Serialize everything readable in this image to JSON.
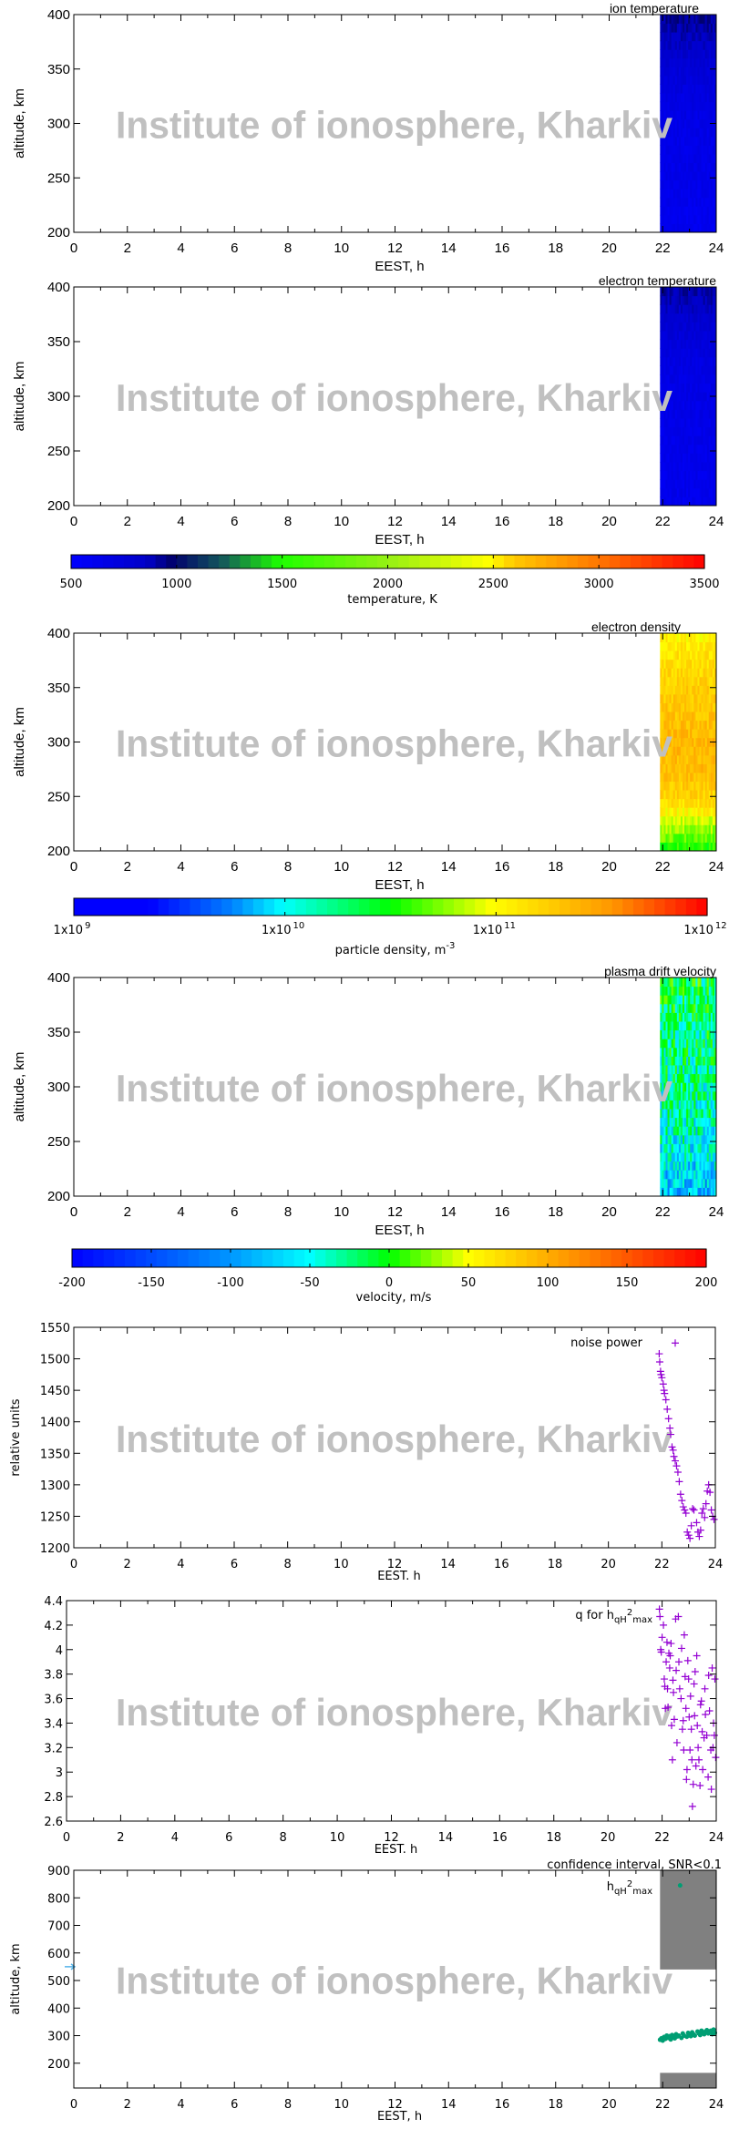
{
  "watermark": "Institute of ionosphere, Kharkiv",
  "chart_data": [
    {
      "type": "heatmap",
      "title": "ion temperature",
      "xlabel": "EEST, h",
      "ylabel": "altitude, km",
      "xlim": [
        0,
        24
      ],
      "ylim": [
        200,
        400
      ],
      "xticks": [
        "0",
        "2",
        "4",
        "6",
        "8",
        "10",
        "12",
        "14",
        "16",
        "18",
        "20",
        "22",
        "24"
      ],
      "yticks": [
        "200",
        "250",
        "300",
        "350",
        "400"
      ],
      "data_x_range": [
        21.9,
        24
      ],
      "altitudes": [
        200,
        225,
        250,
        275,
        300,
        325,
        350,
        375,
        400
      ],
      "values": [
        600,
        620,
        640,
        650,
        660,
        700,
        760,
        850,
        950
      ],
      "colorbar": 0
    },
    {
      "type": "heatmap",
      "title": "electron temperature",
      "xlabel": "EEST, h",
      "ylabel": "altitude, km",
      "xlim": [
        0,
        24
      ],
      "ylim": [
        200,
        400
      ],
      "xticks": [
        "0",
        "2",
        "4",
        "6",
        "8",
        "10",
        "12",
        "14",
        "16",
        "18",
        "20",
        "22",
        "24"
      ],
      "yticks": [
        "200",
        "250",
        "300",
        "350",
        "400"
      ],
      "data_x_range": [
        21.9,
        24
      ],
      "altitudes": [
        200,
        225,
        250,
        275,
        300,
        325,
        350,
        375,
        400
      ],
      "values": [
        620,
        630,
        640,
        650,
        660,
        680,
        740,
        820,
        920
      ],
      "colorbar": 0
    },
    {
      "type": "heatmap",
      "title": "electron density",
      "xlabel": "EEST, h",
      "ylabel": "altitude, km",
      "xlim": [
        0,
        24
      ],
      "ylim": [
        200,
        400
      ],
      "xticks": [
        "0",
        "2",
        "4",
        "6",
        "8",
        "10",
        "12",
        "14",
        "16",
        "18",
        "20",
        "22",
        "24"
      ],
      "yticks": [
        "200",
        "250",
        "300",
        "350",
        "400"
      ],
      "data_x_range": [
        21.9,
        24
      ],
      "altitudes": [
        200,
        225,
        250,
        275,
        300,
        325,
        350,
        375,
        400
      ],
      "values": [
        30000000000.0,
        70000000000.0,
        160000000000.0,
        220000000000.0,
        230000000000.0,
        200000000000.0,
        170000000000.0,
        140000000000.0,
        110000000000.0
      ],
      "colorbar": 1
    },
    {
      "type": "heatmap",
      "title": "plasma drift velocity",
      "xlabel": "EEST, h",
      "ylabel": "altitude, km",
      "xlim": [
        0,
        24
      ],
      "ylim": [
        200,
        400
      ],
      "xticks": [
        "0",
        "2",
        "4",
        "6",
        "8",
        "10",
        "12",
        "14",
        "16",
        "18",
        "20",
        "22",
        "24"
      ],
      "yticks": [
        "200",
        "250",
        "300",
        "350",
        "400"
      ],
      "data_x_range": [
        21.9,
        24
      ],
      "altitudes": [
        200,
        225,
        250,
        275,
        300,
        325,
        350,
        375,
        400
      ],
      "values": [
        -90,
        -70,
        -50,
        -40,
        -35,
        -30,
        -25,
        -20,
        -15
      ],
      "colorbar": 2
    },
    {
      "type": "scatter",
      "title": "noise power",
      "xlabel": "EEST. h",
      "ylabel": "relative units",
      "xlim": [
        0,
        24
      ],
      "ylim": [
        1200,
        1550
      ],
      "xticks": [
        "0",
        "2",
        "4",
        "6",
        "8",
        "10",
        "12",
        "14",
        "16",
        "18",
        "20",
        "22",
        "24"
      ],
      "yticks": [
        "1200",
        "1250",
        "1300",
        "1350",
        "1400",
        "1450",
        "1500",
        "1550"
      ],
      "color": "#9400d3",
      "points": [
        [
          21.9,
          1508
        ],
        [
          21.92,
          1495
        ],
        [
          21.95,
          1480
        ],
        [
          21.97,
          1475
        ],
        [
          22.0,
          1470
        ],
        [
          22.05,
          1460
        ],
        [
          22.08,
          1450
        ],
        [
          22.1,
          1445
        ],
        [
          22.15,
          1435
        ],
        [
          22.2,
          1420
        ],
        [
          22.25,
          1405
        ],
        [
          22.3,
          1390
        ],
        [
          22.33,
          1380
        ],
        [
          22.38,
          1360
        ],
        [
          22.42,
          1355
        ],
        [
          22.45,
          1345
        ],
        [
          22.5,
          1338
        ],
        [
          22.55,
          1330
        ],
        [
          22.6,
          1320
        ],
        [
          22.65,
          1305
        ],
        [
          22.7,
          1285
        ],
        [
          22.75,
          1275
        ],
        [
          22.8,
          1265
        ],
        [
          22.85,
          1260
        ],
        [
          22.9,
          1255
        ],
        [
          22.95,
          1225
        ],
        [
          23.0,
          1220
        ],
        [
          23.05,
          1215
        ],
        [
          23.1,
          1235
        ],
        [
          23.15,
          1262
        ],
        [
          23.2,
          1260
        ],
        [
          23.3,
          1240
        ],
        [
          23.35,
          1225
        ],
        [
          23.4,
          1218
        ],
        [
          23.45,
          1228
        ],
        [
          23.5,
          1255
        ],
        [
          23.55,
          1262
        ],
        [
          23.6,
          1248
        ],
        [
          23.65,
          1270
        ],
        [
          23.7,
          1290
        ],
        [
          23.75,
          1300
        ],
        [
          23.8,
          1288
        ],
        [
          23.85,
          1260
        ],
        [
          23.9,
          1250
        ],
        [
          23.95,
          1245
        ],
        [
          22.5,
          1525
        ]
      ]
    },
    {
      "type": "scatter",
      "title": "q for h",
      "title_sub": "qH",
      "title_sup": "2",
      "title_sub2": "max",
      "xlabel": "EEST. h",
      "ylabel": "",
      "xlim": [
        0,
        24
      ],
      "ylim": [
        2.6,
        4.4
      ],
      "xticks": [
        "0",
        "2",
        "4",
        "6",
        "8",
        "10",
        "12",
        "14",
        "16",
        "18",
        "20",
        "22",
        "24"
      ],
      "yticks": [
        "2.6",
        "2.8",
        "3",
        "3.2",
        "3.4",
        "3.6",
        "3.8",
        "4",
        "4.2",
        "4.4"
      ],
      "color": "#9400d3",
      "points": [
        [
          21.9,
          4.33
        ],
        [
          21.92,
          4.27
        ],
        [
          21.95,
          4.0
        ],
        [
          21.97,
          3.98
        ],
        [
          22.0,
          4.1
        ],
        [
          22.05,
          4.2
        ],
        [
          22.08,
          3.76
        ],
        [
          22.1,
          3.7
        ],
        [
          22.12,
          3.52
        ],
        [
          22.15,
          3.9
        ],
        [
          22.18,
          4.06
        ],
        [
          22.2,
          3.68
        ],
        [
          22.22,
          3.53
        ],
        [
          22.25,
          3.97
        ],
        [
          22.28,
          3.85
        ],
        [
          22.3,
          3.95
        ],
        [
          22.33,
          4.05
        ],
        [
          22.35,
          3.38
        ],
        [
          22.38,
          3.1
        ],
        [
          22.4,
          3.75
        ],
        [
          22.42,
          3.65
        ],
        [
          22.45,
          3.43
        ],
        [
          22.5,
          4.25
        ],
        [
          22.52,
          3.83
        ],
        [
          22.55,
          3.24
        ],
        [
          22.6,
          4.27
        ],
        [
          22.62,
          3.9
        ],
        [
          22.65,
          3.68
        ],
        [
          22.7,
          3.6
        ],
        [
          22.72,
          4.01
        ],
        [
          22.75,
          3.35
        ],
        [
          22.78,
          3.42
        ],
        [
          22.8,
          3.18
        ],
        [
          22.82,
          4.12
        ],
        [
          22.85,
          3.78
        ],
        [
          22.88,
          3.52
        ],
        [
          22.9,
          2.94
        ],
        [
          22.92,
          3.02
        ],
        [
          22.95,
          3.91
        ],
        [
          22.98,
          3.76
        ],
        [
          23.0,
          3.45
        ],
        [
          23.03,
          3.18
        ],
        [
          23.05,
          3.62
        ],
        [
          23.08,
          3.35
        ],
        [
          23.1,
          3.1
        ],
        [
          23.12,
          2.72
        ],
        [
          23.15,
          2.9
        ],
        [
          23.18,
          3.72
        ],
        [
          23.2,
          3.46
        ],
        [
          23.22,
          3.82
        ],
        [
          23.25,
          3.05
        ],
        [
          23.28,
          3.95
        ],
        [
          23.3,
          3.38
        ],
        [
          23.33,
          3.2
        ],
        [
          23.36,
          3.1
        ],
        [
          23.4,
          2.89
        ],
        [
          23.42,
          3.55
        ],
        [
          23.45,
          3.58
        ],
        [
          23.48,
          3.33
        ],
        [
          23.5,
          3.02
        ],
        [
          23.55,
          3.28
        ],
        [
          23.58,
          3.68
        ],
        [
          23.6,
          3.47
        ],
        [
          23.65,
          3.3
        ],
        [
          23.7,
          2.96
        ],
        [
          23.72,
          3.79
        ],
        [
          23.75,
          3.5
        ],
        [
          23.8,
          3.18
        ],
        [
          23.82,
          2.86
        ],
        [
          23.85,
          3.85
        ],
        [
          23.88,
          3.2
        ],
        [
          23.9,
          3.4
        ],
        [
          23.93,
          3.3
        ],
        [
          23.95,
          3.76
        ],
        [
          23.98,
          3.12
        ]
      ]
    },
    {
      "type": "scatter",
      "title": "confidence interval, SNR<0.1",
      "legend": "h",
      "legend_sub": "qH",
      "legend_sup": "2",
      "legend_sub2": "max",
      "xlabel": "EEST, h",
      "ylabel": "altitude, km",
      "xlim": [
        0,
        24
      ],
      "ylim": [
        110,
        900
      ],
      "xticks": [
        "0",
        "2",
        "4",
        "6",
        "8",
        "10",
        "12",
        "14",
        "16",
        "18",
        "20",
        "22",
        "24"
      ],
      "yticks": [
        "200",
        "300",
        "400",
        "500",
        "600",
        "700",
        "800",
        "900"
      ],
      "color": "#009e73",
      "band_color": "#808080",
      "bands": [
        [
          21.9,
          24,
          540,
          900
        ],
        [
          21.9,
          24,
          110,
          165
        ]
      ],
      "marker": {
        "x": 0,
        "y": 550,
        "color": "#56b4e9"
      },
      "points": [
        [
          21.9,
          285
        ],
        [
          21.95,
          290
        ],
        [
          22.0,
          282
        ],
        [
          22.05,
          295
        ],
        [
          22.1,
          288
        ],
        [
          22.15,
          300
        ],
        [
          22.2,
          292
        ],
        [
          22.25,
          298
        ],
        [
          22.3,
          286
        ],
        [
          22.35,
          302
        ],
        [
          22.4,
          295
        ],
        [
          22.45,
          290
        ],
        [
          22.5,
          305
        ],
        [
          22.55,
          297
        ],
        [
          22.6,
          300
        ],
        [
          22.7,
          292
        ],
        [
          22.75,
          308
        ],
        [
          22.8,
          300
        ],
        [
          22.9,
          296
        ],
        [
          22.95,
          310
        ],
        [
          23.0,
          302
        ],
        [
          23.05,
          298
        ],
        [
          23.1,
          312
        ],
        [
          23.15,
          305
        ],
        [
          23.2,
          300
        ],
        [
          23.3,
          315
        ],
        [
          23.35,
          308
        ],
        [
          23.4,
          302
        ],
        [
          23.45,
          318
        ],
        [
          23.5,
          310
        ],
        [
          23.55,
          305
        ],
        [
          23.6,
          315
        ],
        [
          23.65,
          320
        ],
        [
          23.7,
          308
        ],
        [
          23.75,
          312
        ],
        [
          23.8,
          318
        ],
        [
          23.85,
          305
        ],
        [
          23.9,
          322
        ],
        [
          23.95,
          310
        ],
        [
          22.65,
          845
        ]
      ]
    }
  ],
  "colorbars": [
    {
      "label": "temperature, K",
      "range": [
        500,
        3500
      ],
      "scale": "linear",
      "ticks": [
        "500",
        "1000",
        "1500",
        "2000",
        "2500",
        "3000",
        "3500"
      ]
    },
    {
      "label": "particle density, m",
      "label_sup": "-3",
      "range": [
        1000000000.0,
        1000000000000.0
      ],
      "scale": "log",
      "ticks": [
        {
          "base": "1x10",
          "exp": "9"
        },
        {
          "base": "1x10",
          "exp": "10"
        },
        {
          "base": "1x10",
          "exp": "11"
        },
        {
          "base": "1x10",
          "exp": "12"
        }
      ]
    },
    {
      "label": "velocity, m/s",
      "range": [
        -200,
        200
      ],
      "scale": "linear",
      "ticks": [
        "-200",
        "-150",
        "-100",
        "-50",
        "0",
        "50",
        "100",
        "150",
        "200"
      ]
    }
  ]
}
